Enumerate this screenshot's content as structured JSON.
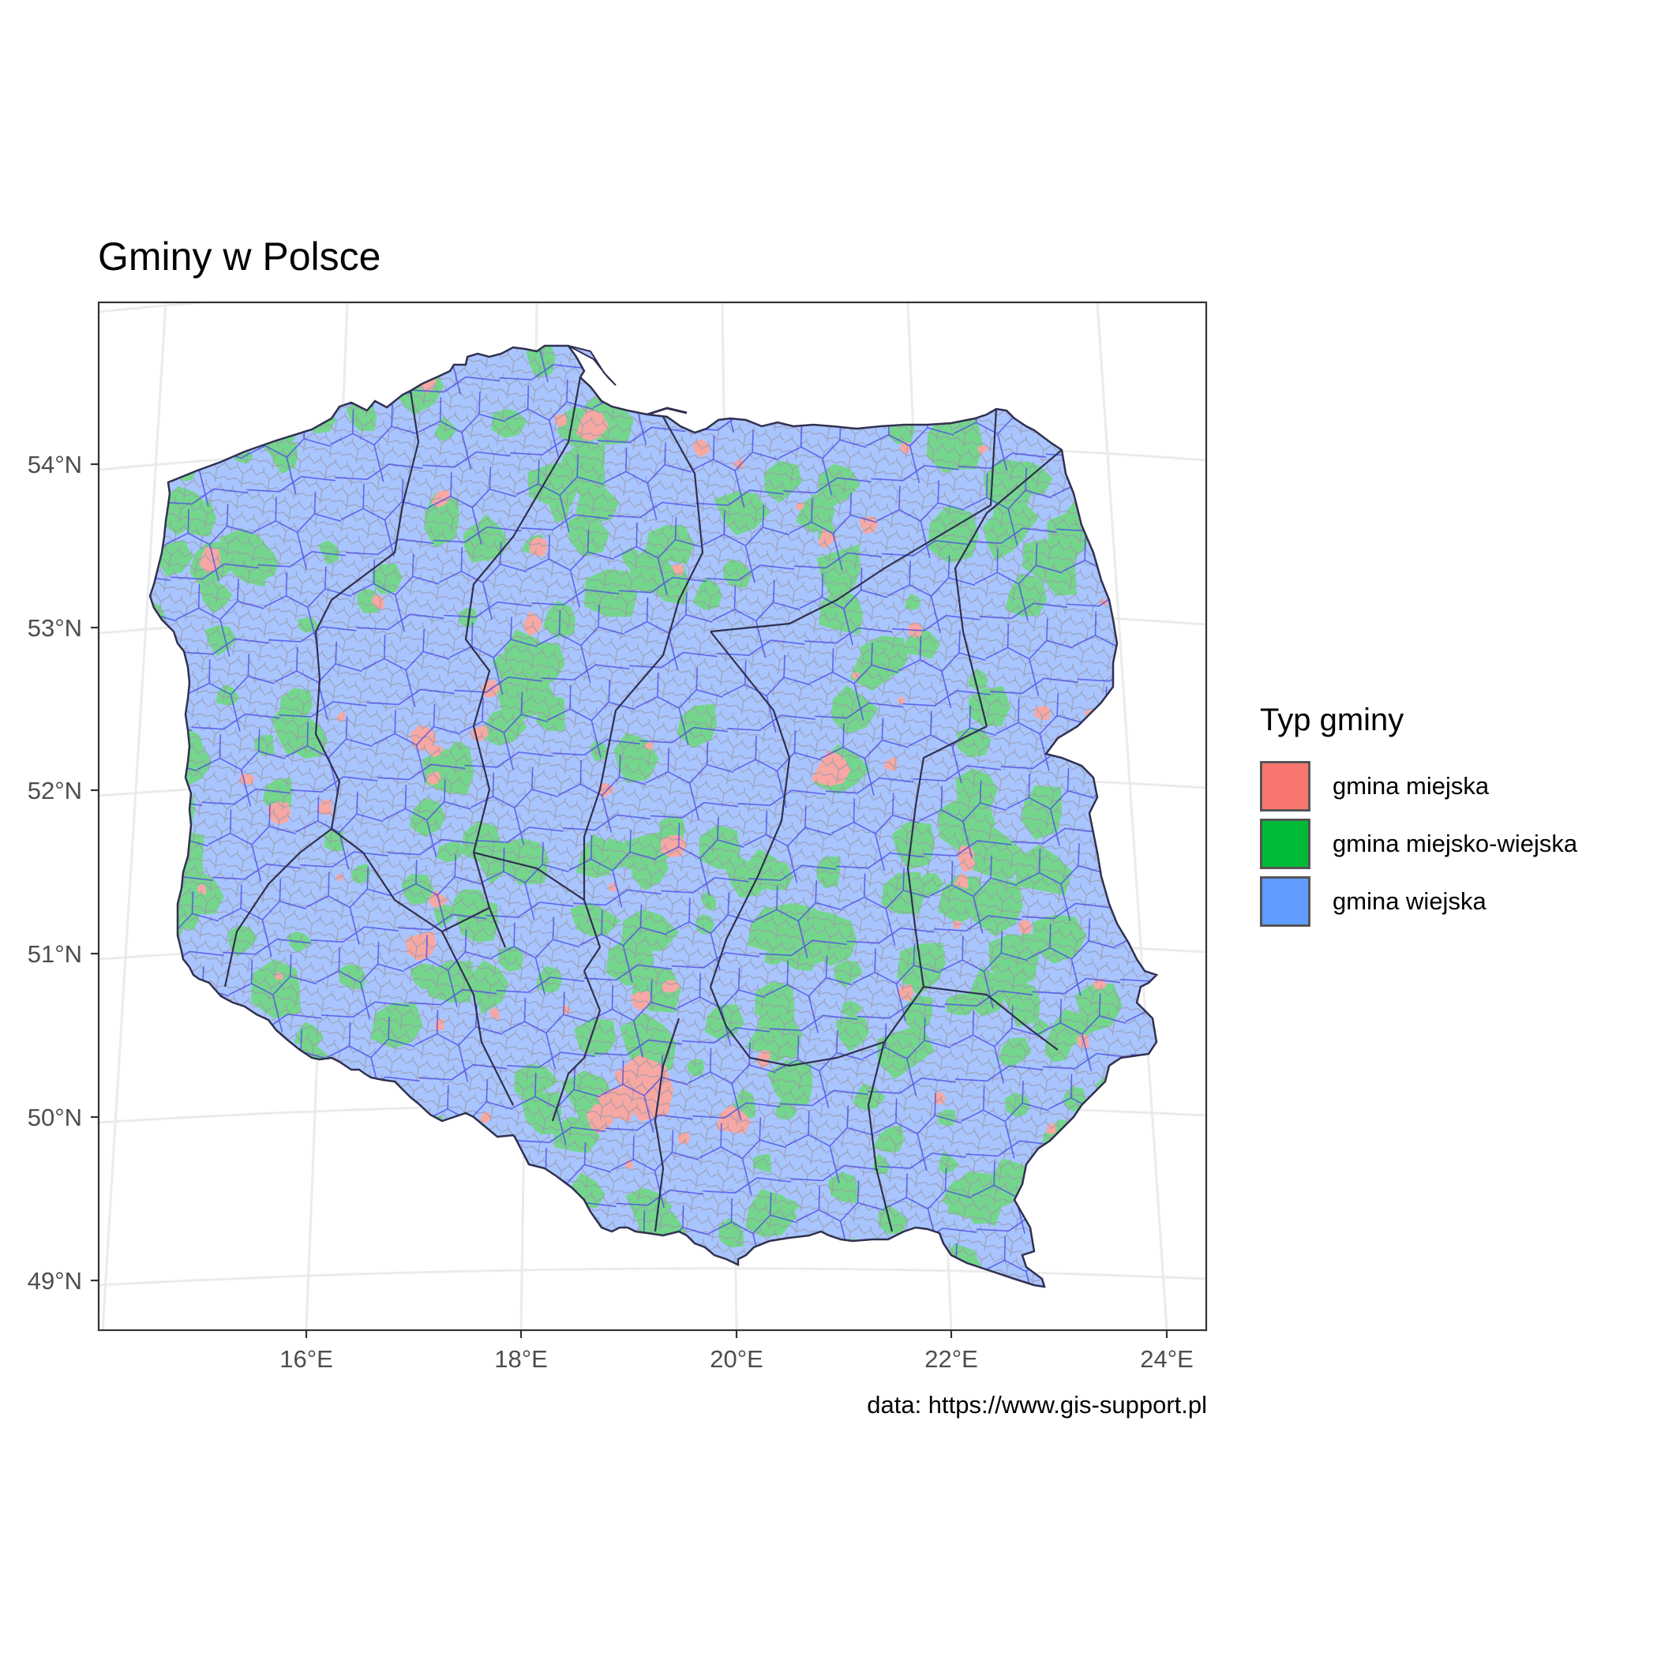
{
  "title": "Gminy w Polsce",
  "caption": "data: https://www.gis-support.pl",
  "legend": {
    "title": "Typ gminy",
    "items": [
      {
        "label": "gmina miejska",
        "color": "#F8766D"
      },
      {
        "label": "gmina miejsko-wiejska",
        "color": "#00BA38"
      },
      {
        "label": "gmina wiejska",
        "color": "#619CFF"
      }
    ]
  },
  "axes": {
    "x_ticks": [
      "16°E",
      "18°E",
      "20°E",
      "22°E",
      "24°E"
    ],
    "y_ticks": [
      "54°N",
      "53°N",
      "52°N",
      "51°N",
      "50°N",
      "49°N"
    ]
  },
  "colors": {
    "map_fill_wiejska": "#a9c5ff",
    "map_fill_miejsko_wiejska": "#74d68c",
    "map_fill_miejska": "#f7a8a3",
    "gmina_border": "#999999",
    "powiat_border": "#4a4ae6",
    "voivodeship_border": "#303050",
    "grid": "#ebebeb",
    "panel_border": "#333333"
  }
}
